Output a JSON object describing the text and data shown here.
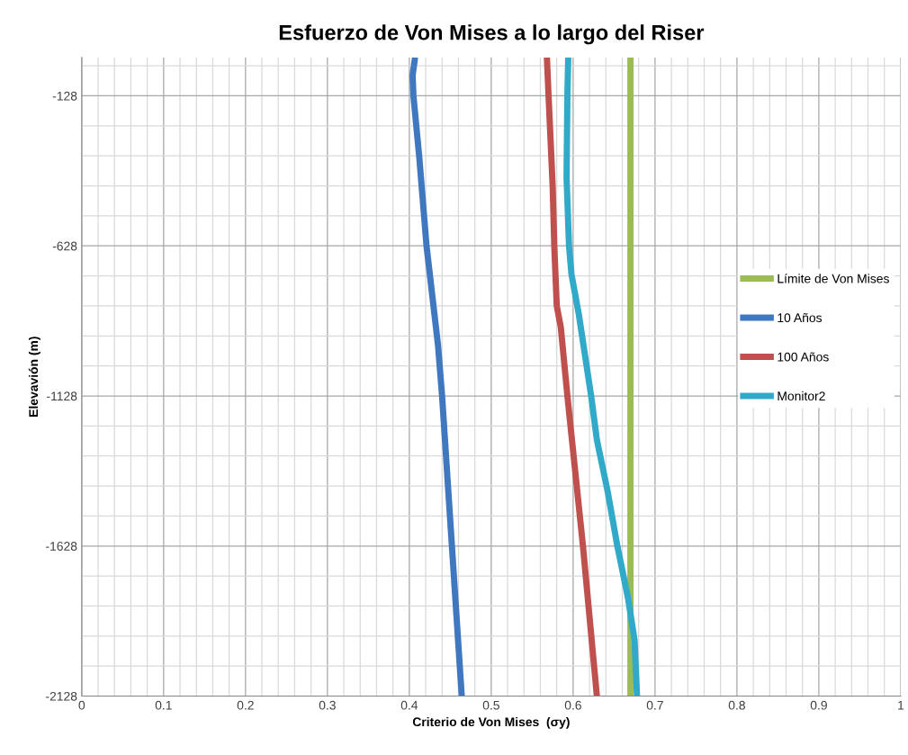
{
  "chart_data": {
    "type": "line",
    "title": "Esfuerzo de Von Mises a lo largo del Riser",
    "xlabel": "Criterio de Von Mises  (σy)",
    "ylabel": "Elevavión (m)",
    "xlim": [
      0,
      1
    ],
    "ylim": [
      -2128,
      0
    ],
    "xticks": [
      0,
      {
        "value": 0.02,
        "label": null
      },
      {
        "value": 0.04,
        "label": null
      },
      {
        "value": 0.06,
        "label": null
      },
      {
        "value": 0.08,
        "label": null
      },
      0.1,
      {
        "value": 0.12,
        "label": null
      },
      {
        "value": 0.14,
        "label": null
      },
      {
        "value": 0.16,
        "label": null
      },
      {
        "value": 0.18,
        "label": null
      },
      0.2,
      {
        "value": 0.22,
        "label": null
      },
      {
        "value": 0.24,
        "label": null
      },
      {
        "value": 0.26,
        "label": null
      },
      {
        "value": 0.28,
        "label": null
      },
      0.3,
      {
        "value": 0.32,
        "label": null
      },
      {
        "value": 0.34,
        "label": null
      },
      {
        "value": 0.36,
        "label": null
      },
      {
        "value": 0.38,
        "label": null
      },
      0.4,
      {
        "value": 0.42,
        "label": null
      },
      {
        "value": 0.44,
        "label": null
      },
      {
        "value": 0.46,
        "label": null
      },
      {
        "value": 0.48,
        "label": null
      },
      0.5,
      {
        "value": 0.52,
        "label": null
      },
      {
        "value": 0.54,
        "label": null
      },
      {
        "value": 0.56,
        "label": null
      },
      {
        "value": 0.58,
        "label": null
      },
      0.6,
      {
        "value": 0.62,
        "label": null
      },
      {
        "value": 0.64,
        "label": null
      },
      {
        "value": 0.66,
        "label": null
      },
      {
        "value": 0.68,
        "label": null
      },
      0.7,
      {
        "value": 0.72,
        "label": null
      },
      {
        "value": 0.74,
        "label": null
      },
      {
        "value": 0.76,
        "label": null
      },
      {
        "value": 0.78,
        "label": null
      },
      0.8,
      {
        "value": 0.82,
        "label": null
      },
      {
        "value": 0.84,
        "label": null
      },
      {
        "value": 0.86,
        "label": null
      },
      {
        "value": 0.88,
        "label": null
      },
      0.9,
      {
        "value": 0.92,
        "label": null
      },
      {
        "value": 0.94,
        "label": null
      },
      {
        "value": 0.96,
        "label": null
      },
      {
        "value": 0.98,
        "label": null
      },
      1
    ],
    "yticks": [
      -2128,
      {
        "value": -2028,
        "label": null
      },
      {
        "value": -1928,
        "label": null
      },
      {
        "value": -1828,
        "label": null
      },
      {
        "value": -1728,
        "label": null
      },
      -1628,
      {
        "value": -1528,
        "label": null
      },
      {
        "value": -1428,
        "label": null
      },
      {
        "value": -1328,
        "label": null
      },
      {
        "value": -1228,
        "label": null
      },
      -1128,
      {
        "value": -1028,
        "label": null
      },
      {
        "value": -928,
        "label": null
      },
      {
        "value": -828,
        "label": null
      },
      {
        "value": -728,
        "label": null
      },
      -628,
      {
        "value": -528,
        "label": null
      },
      {
        "value": -428,
        "label": null
      },
      {
        "value": -328,
        "label": null
      },
      {
        "value": -228,
        "label": null
      },
      -128,
      {
        "value": -28,
        "label": null
      }
    ],
    "grid": true,
    "legend": "right",
    "marker": "none",
    "line_style": "solid",
    "series": [
      {
        "name": "Límite de Von Mises",
        "color": "#9bbb59",
        "x": [
          0.67,
          0.67
        ],
        "values": [
          0,
          -2128
        ]
      },
      {
        "name": "10 Años",
        "color": "#4078c0",
        "x": [
          0.407,
          0.404,
          0.405,
          0.412,
          0.421,
          0.435,
          0.44,
          0.452,
          0.464
        ],
        "values": [
          0,
          -60,
          -128,
          -328,
          -628,
          -958,
          -1128,
          -1628,
          -2128
        ]
      },
      {
        "name": "100 Años",
        "color": "#c0504d",
        "x": [
          0.568,
          0.57,
          0.575,
          0.577,
          0.58,
          0.585,
          0.593,
          0.612,
          0.629
        ],
        "values": [
          0,
          -128,
          -428,
          -628,
          -828,
          -900,
          -1128,
          -1628,
          -2128
        ]
      },
      {
        "name": "Monitor2",
        "color": "#31a9c9",
        "x": [
          0.594,
          0.593,
          0.592,
          0.595,
          0.598,
          0.607,
          0.622,
          0.629,
          0.642,
          0.654,
          0.667,
          0.675,
          0.678
        ],
        "values": [
          0,
          -128,
          -400,
          -628,
          -723,
          -857,
          -1128,
          -1274,
          -1444,
          -1628,
          -1801,
          -1941,
          -2128
        ]
      }
    ]
  }
}
